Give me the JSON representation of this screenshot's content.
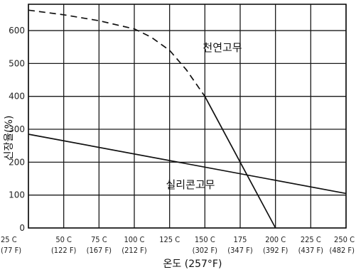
{
  "chart_data": {
    "type": "line",
    "xlabel": "온도 (257°F)",
    "ylabel": "신장율(%)",
    "x_ticks": [
      25,
      50,
      75,
      100,
      125,
      150,
      175,
      200,
      225,
      250
    ],
    "x_tick_labels": [
      {
        "c": "25 C",
        "f": "(77 F)"
      },
      {
        "c": "50 C",
        "f": "(122 F)"
      },
      {
        "c": "75 C",
        "f": "(167 F)"
      },
      {
        "c": "100 C",
        "f": "(212 F)"
      },
      {
        "c": "125 C",
        "f": ""
      },
      {
        "c": "150 C",
        "f": "(302 F)"
      },
      {
        "c": "175",
        "f": "(347 F)"
      },
      {
        "c": "200 C",
        "f": "(392 F)"
      },
      {
        "c": "225 C",
        "f": "(437 F)"
      },
      {
        "c": "250 C",
        "f": "(482 F)"
      }
    ],
    "y_ticks": [
      0,
      100,
      200,
      300,
      400,
      500,
      600
    ],
    "xlim": [
      25,
      250
    ],
    "ylim": [
      0,
      680
    ],
    "grid": true,
    "series": [
      {
        "name": "천연고무",
        "color": "#111111",
        "segments": [
          {
            "style": "dashed",
            "x": [
              25,
              50,
              75,
              100,
              112,
              125,
              137,
              150
            ],
            "y": [
              662,
              648,
              630,
              605,
              580,
              540,
              480,
              400
            ]
          },
          {
            "style": "solid",
            "x": [
              150,
              200
            ],
            "y": [
              400,
              0
            ]
          }
        ]
      },
      {
        "name": "실리콘고무",
        "color": "#111111",
        "segments": [
          {
            "style": "solid",
            "x": [
              25,
              250
            ],
            "y": [
              285,
              105
            ]
          }
        ]
      }
    ]
  }
}
